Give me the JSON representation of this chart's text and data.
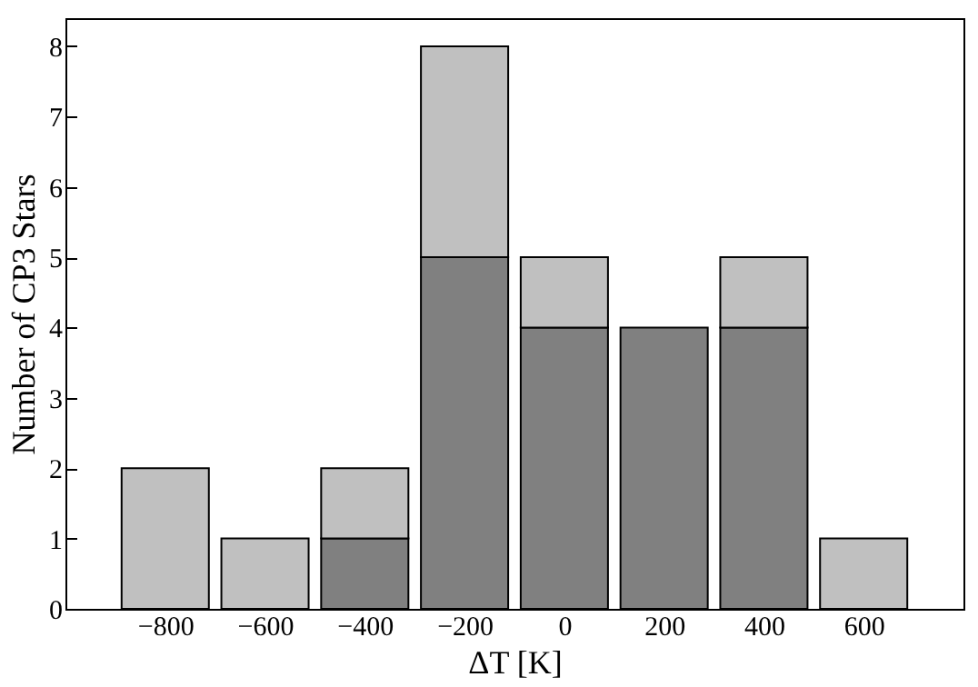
{
  "chart_data": {
    "type": "bar",
    "xlabel": "ΔT [K]",
    "ylabel": "Number of CP3 Stars",
    "x": [
      -800,
      -600,
      -400,
      -200,
      0,
      200,
      400,
      600
    ],
    "stacked": true,
    "series": [
      {
        "color": "#808080",
        "values": [
          null,
          null,
          1,
          5,
          4,
          4,
          4,
          null
        ]
      },
      {
        "color": "#c0c0c0",
        "values": [
          2,
          1,
          1,
          3,
          1,
          null,
          1,
          1
        ]
      }
    ],
    "xlim": [
      -1000,
      800
    ],
    "xticks": [
      -800,
      -600,
      -400,
      -200,
      0,
      200,
      400,
      600
    ],
    "ylim": [
      0,
      8.4
    ],
    "yticks": [
      0,
      1,
      2,
      3,
      4,
      5,
      6,
      7,
      8
    ],
    "grid": false
  }
}
